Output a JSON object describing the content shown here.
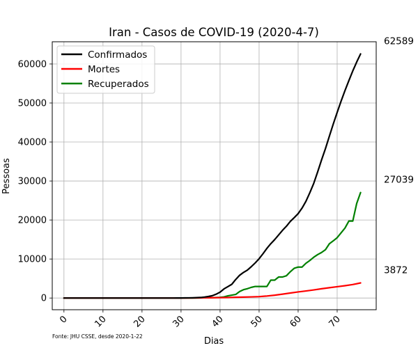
{
  "chart_data": {
    "type": "line",
    "title": "Iran - Casos de COVID-19 (2020-4-7)",
    "xlabel": "Dias",
    "ylabel": "Pessoas",
    "source": "Fonte: JHU CSSE, desde 2020-1-22",
    "xlim": [
      -3,
      80
    ],
    "ylim": [
      -3000,
      65700
    ],
    "xticks": [
      0,
      10,
      20,
      30,
      40,
      50,
      60,
      70
    ],
    "yticks": [
      0,
      10000,
      20000,
      30000,
      40000,
      50000,
      60000
    ],
    "grid": true,
    "legend_position": "top-left",
    "series": [
      {
        "name": "Confirmados",
        "color": "#000000",
        "end_label": "62589",
        "points": [
          [
            0,
            0
          ],
          [
            27,
            0
          ],
          [
            28,
            2
          ],
          [
            29,
            5
          ],
          [
            30,
            18
          ],
          [
            31,
            28
          ],
          [
            32,
            43
          ],
          [
            33,
            61
          ],
          [
            34,
            95
          ],
          [
            35,
            139
          ],
          [
            36,
            245
          ],
          [
            37,
            388
          ],
          [
            38,
            593
          ],
          [
            39,
            978
          ],
          [
            40,
            1501
          ],
          [
            41,
            2336
          ],
          [
            42,
            2922
          ],
          [
            43,
            3513
          ],
          [
            44,
            4747
          ],
          [
            45,
            5823
          ],
          [
            46,
            6566
          ],
          [
            47,
            7161
          ],
          [
            48,
            8042
          ],
          [
            49,
            9000
          ],
          [
            50,
            10075
          ],
          [
            51,
            11364
          ],
          [
            52,
            12729
          ],
          [
            53,
            13938
          ],
          [
            54,
            14991
          ],
          [
            55,
            16169
          ],
          [
            56,
            17361
          ],
          [
            57,
            18407
          ],
          [
            58,
            19644
          ],
          [
            59,
            20610
          ],
          [
            60,
            21638
          ],
          [
            61,
            23049
          ],
          [
            62,
            24811
          ],
          [
            63,
            27017
          ],
          [
            64,
            29406
          ],
          [
            65,
            32332
          ],
          [
            66,
            35408
          ],
          [
            67,
            38309
          ],
          [
            68,
            41495
          ],
          [
            69,
            44605
          ],
          [
            70,
            47593
          ],
          [
            71,
            50468
          ],
          [
            72,
            53183
          ],
          [
            73,
            55743
          ],
          [
            74,
            58226
          ],
          [
            75,
            60500
          ],
          [
            76,
            62589
          ]
        ]
      },
      {
        "name": "Mortes",
        "color": "#ff0000",
        "end_label": "3872",
        "points": [
          [
            0,
            0
          ],
          [
            28,
            2
          ],
          [
            30,
            4
          ],
          [
            32,
            12
          ],
          [
            34,
            26
          ],
          [
            36,
            43
          ],
          [
            38,
            77
          ],
          [
            40,
            92
          ],
          [
            42,
            124
          ],
          [
            44,
            194
          ],
          [
            46,
            237
          ],
          [
            48,
            291
          ],
          [
            50,
            354
          ],
          [
            52,
            514
          ],
          [
            54,
            724
          ],
          [
            56,
            988
          ],
          [
            58,
            1284
          ],
          [
            60,
            1556
          ],
          [
            62,
            1812
          ],
          [
            64,
            2077
          ],
          [
            66,
            2378
          ],
          [
            68,
            2640
          ],
          [
            70,
            2898
          ],
          [
            72,
            3160
          ],
          [
            74,
            3452
          ],
          [
            76,
            3872
          ]
        ]
      },
      {
        "name": "Recuperados",
        "color": "#008000",
        "end_label": "27039",
        "points": [
          [
            0,
            0
          ],
          [
            33,
            0
          ],
          [
            36,
            49
          ],
          [
            38,
            73
          ],
          [
            40,
            175
          ],
          [
            41,
            291
          ],
          [
            42,
            552
          ],
          [
            43,
            739
          ],
          [
            44,
            913
          ],
          [
            45,
            1669
          ],
          [
            46,
            2134
          ],
          [
            47,
            2394
          ],
          [
            48,
            2731
          ],
          [
            49,
            2959
          ],
          [
            50,
            2959
          ],
          [
            51,
            2959
          ],
          [
            52,
            2959
          ],
          [
            53,
            4590
          ],
          [
            54,
            4590
          ],
          [
            55,
            5389
          ],
          [
            56,
            5389
          ],
          [
            57,
            5710
          ],
          [
            58,
            6745
          ],
          [
            59,
            7635
          ],
          [
            60,
            7931
          ],
          [
            61,
            7931
          ],
          [
            62,
            8913
          ],
          [
            63,
            9625
          ],
          [
            64,
            10457
          ],
          [
            65,
            11133
          ],
          [
            66,
            11679
          ],
          [
            67,
            12391
          ],
          [
            68,
            13911
          ],
          [
            69,
            14656
          ],
          [
            70,
            15473
          ],
          [
            71,
            16711
          ],
          [
            72,
            17935
          ],
          [
            73,
            19736
          ],
          [
            74,
            19736
          ],
          [
            75,
            24236
          ],
          [
            76,
            27039
          ]
        ]
      }
    ]
  }
}
